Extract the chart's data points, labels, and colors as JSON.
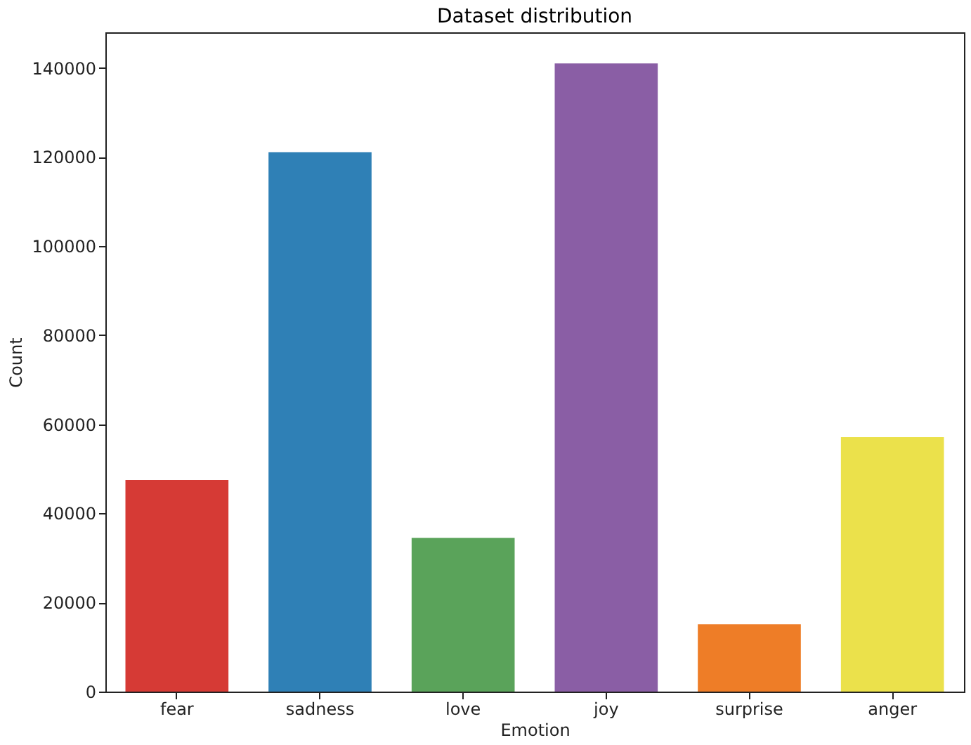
{
  "chart_data": {
    "type": "bar",
    "title": "Dataset distribution",
    "xlabel": "Emotion",
    "ylabel": "Count",
    "categories": [
      "fear",
      "sadness",
      "love",
      "joy",
      "surprise",
      "anger"
    ],
    "values": [
      47500,
      121100,
      34500,
      141000,
      15100,
      57100
    ],
    "colors": [
      "#d63a35",
      "#2f80b6",
      "#5aa35a",
      "#8a5ea5",
      "#ee7d27",
      "#ebe14b"
    ],
    "ylim": [
      0,
      148000
    ],
    "yticks": [
      0,
      20000,
      40000,
      60000,
      80000,
      100000,
      120000,
      140000
    ],
    "grid": false,
    "legend": false
  }
}
